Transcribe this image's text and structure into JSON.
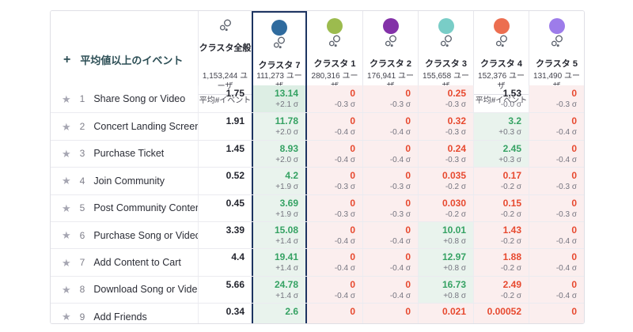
{
  "header": {
    "add_filter_label": "平均値以上のイベント",
    "plus_glyph": "+",
    "avg_metric_label": "平均#イベント"
  },
  "columns": [
    {
      "name": "クラスタ全般",
      "users": "1,153,244 ユーザ",
      "color": "",
      "icon": "cluster-bubbles-icon",
      "selected": false
    },
    {
      "name": "クラスタ 7",
      "users": "111,273 ユーザ",
      "color": "#2f6b9e",
      "selected": true
    },
    {
      "name": "クラスタ 1",
      "users": "280,316 ユーザ",
      "color": "#9cbb4e",
      "selected": false
    },
    {
      "name": "クラスタ 2",
      "users": "176,941 ユーザ",
      "color": "#8331a8",
      "selected": false
    },
    {
      "name": "クラスタ 3",
      "users": "155,658 ユーザ",
      "color": "#79cdc7",
      "selected": false
    },
    {
      "name": "クラスタ 4",
      "users": "152,376 ユーザ",
      "color": "#ec6e50",
      "selected": false
    },
    {
      "name": "クラスタ 5",
      "users": "131,490 ユーザ",
      "color": "#9d7cea",
      "selected": false
    }
  ],
  "rows": [
    {
      "rank": "1",
      "event": "Share Song or Video",
      "overall": "1.75",
      "cells": [
        {
          "value": "13.14",
          "sigma": "+2.1 σ",
          "tone": "pos-strong"
        },
        {
          "value": "0",
          "sigma": "-0.3 σ",
          "tone": "neg"
        },
        {
          "value": "0",
          "sigma": "-0.3 σ",
          "tone": "neg"
        },
        {
          "value": "0.25",
          "sigma": "-0.3 σ",
          "tone": "neg"
        },
        {
          "value": "1.53",
          "sigma": "-0.0 σ",
          "tone": "neutral"
        },
        {
          "value": "0",
          "sigma": "-0.3 σ",
          "tone": "neg"
        }
      ]
    },
    {
      "rank": "2",
      "event": "Concert Landing Screen",
      "overall": "1.91",
      "cells": [
        {
          "value": "11.78",
          "sigma": "+2.0 σ",
          "tone": "pos"
        },
        {
          "value": "0",
          "sigma": "-0.4 σ",
          "tone": "neg"
        },
        {
          "value": "0",
          "sigma": "-0.4 σ",
          "tone": "neg"
        },
        {
          "value": "0.32",
          "sigma": "-0.3 σ",
          "tone": "neg"
        },
        {
          "value": "3.2",
          "sigma": "+0.3 σ",
          "tone": "pos"
        },
        {
          "value": "0",
          "sigma": "-0.4 σ",
          "tone": "neg"
        }
      ]
    },
    {
      "rank": "3",
      "event": "Purchase Ticket",
      "overall": "1.45",
      "cells": [
        {
          "value": "8.93",
          "sigma": "+2.0 σ",
          "tone": "pos"
        },
        {
          "value": "0",
          "sigma": "-0.4 σ",
          "tone": "neg"
        },
        {
          "value": "0",
          "sigma": "-0.4 σ",
          "tone": "neg"
        },
        {
          "value": "0.24",
          "sigma": "-0.3 σ",
          "tone": "neg"
        },
        {
          "value": "2.45",
          "sigma": "+0.3 σ",
          "tone": "pos"
        },
        {
          "value": "0",
          "sigma": "-0.4 σ",
          "tone": "neg"
        }
      ]
    },
    {
      "rank": "4",
      "event": "Join Community",
      "overall": "0.52",
      "cells": [
        {
          "value": "4.2",
          "sigma": "+1.9 σ",
          "tone": "pos"
        },
        {
          "value": "0",
          "sigma": "-0.3 σ",
          "tone": "neg"
        },
        {
          "value": "0",
          "sigma": "-0.3 σ",
          "tone": "neg"
        },
        {
          "value": "0.035",
          "sigma": "-0.2 σ",
          "tone": "neg"
        },
        {
          "value": "0.17",
          "sigma": "-0.2 σ",
          "tone": "neg"
        },
        {
          "value": "0",
          "sigma": "-0.3 σ",
          "tone": "neg"
        }
      ]
    },
    {
      "rank": "5",
      "event": "Post Community Content",
      "overall": "0.45",
      "cells": [
        {
          "value": "3.69",
          "sigma": "+1.9 σ",
          "tone": "pos"
        },
        {
          "value": "0",
          "sigma": "-0.3 σ",
          "tone": "neg"
        },
        {
          "value": "0",
          "sigma": "-0.3 σ",
          "tone": "neg"
        },
        {
          "value": "0.030",
          "sigma": "-0.2 σ",
          "tone": "neg"
        },
        {
          "value": "0.15",
          "sigma": "-0.2 σ",
          "tone": "neg"
        },
        {
          "value": "0",
          "sigma": "-0.3 σ",
          "tone": "neg"
        }
      ]
    },
    {
      "rank": "6",
      "event": "Purchase Song or Video",
      "overall": "3.39",
      "cells": [
        {
          "value": "15.08",
          "sigma": "+1.4 σ",
          "tone": "pos"
        },
        {
          "value": "0",
          "sigma": "-0.4 σ",
          "tone": "neg"
        },
        {
          "value": "0",
          "sigma": "-0.4 σ",
          "tone": "neg"
        },
        {
          "value": "10.01",
          "sigma": "+0.8 σ",
          "tone": "pos"
        },
        {
          "value": "1.43",
          "sigma": "-0.2 σ",
          "tone": "neg"
        },
        {
          "value": "0",
          "sigma": "-0.4 σ",
          "tone": "neg"
        }
      ]
    },
    {
      "rank": "7",
      "event": "Add Content to Cart",
      "overall": "4.4",
      "cells": [
        {
          "value": "19.41",
          "sigma": "+1.4 σ",
          "tone": "pos"
        },
        {
          "value": "0",
          "sigma": "-0.4 σ",
          "tone": "neg"
        },
        {
          "value": "0",
          "sigma": "-0.4 σ",
          "tone": "neg"
        },
        {
          "value": "12.97",
          "sigma": "+0.8 σ",
          "tone": "pos"
        },
        {
          "value": "1.88",
          "sigma": "-0.2 σ",
          "tone": "neg"
        },
        {
          "value": "0",
          "sigma": "-0.4 σ",
          "tone": "neg"
        }
      ]
    },
    {
      "rank": "8",
      "event": "Download Song or Video",
      "overall": "5.66",
      "cells": [
        {
          "value": "24.78",
          "sigma": "+1.4 σ",
          "tone": "pos"
        },
        {
          "value": "0",
          "sigma": "-0.4 σ",
          "tone": "neg"
        },
        {
          "value": "0",
          "sigma": "-0.4 σ",
          "tone": "neg"
        },
        {
          "value": "16.73",
          "sigma": "+0.8 σ",
          "tone": "pos"
        },
        {
          "value": "2.49",
          "sigma": "-0.2 σ",
          "tone": "neg"
        },
        {
          "value": "0",
          "sigma": "-0.4 σ",
          "tone": "neg"
        }
      ]
    },
    {
      "rank": "9",
      "event": "Add Friends",
      "overall": "0.34",
      "cells": [
        {
          "value": "2.6",
          "sigma": "",
          "tone": "pos"
        },
        {
          "value": "0",
          "sigma": "",
          "tone": "neg"
        },
        {
          "value": "0",
          "sigma": "",
          "tone": "neg"
        },
        {
          "value": "0.021",
          "sigma": "",
          "tone": "neg"
        },
        {
          "value": "0.00052",
          "sigma": "",
          "tone": "neg"
        },
        {
          "value": "0",
          "sigma": "",
          "tone": "neg"
        }
      ]
    }
  ],
  "colors": {
    "selected_border": "#1d3461",
    "positive_text": "#35a263",
    "negative_text": "#e7492f",
    "positive_bg": "#e9f3ed",
    "positive_bg_strong": "#ddeee4",
    "negative_bg": "#fbeeee",
    "sigma_text": "#74747f"
  }
}
